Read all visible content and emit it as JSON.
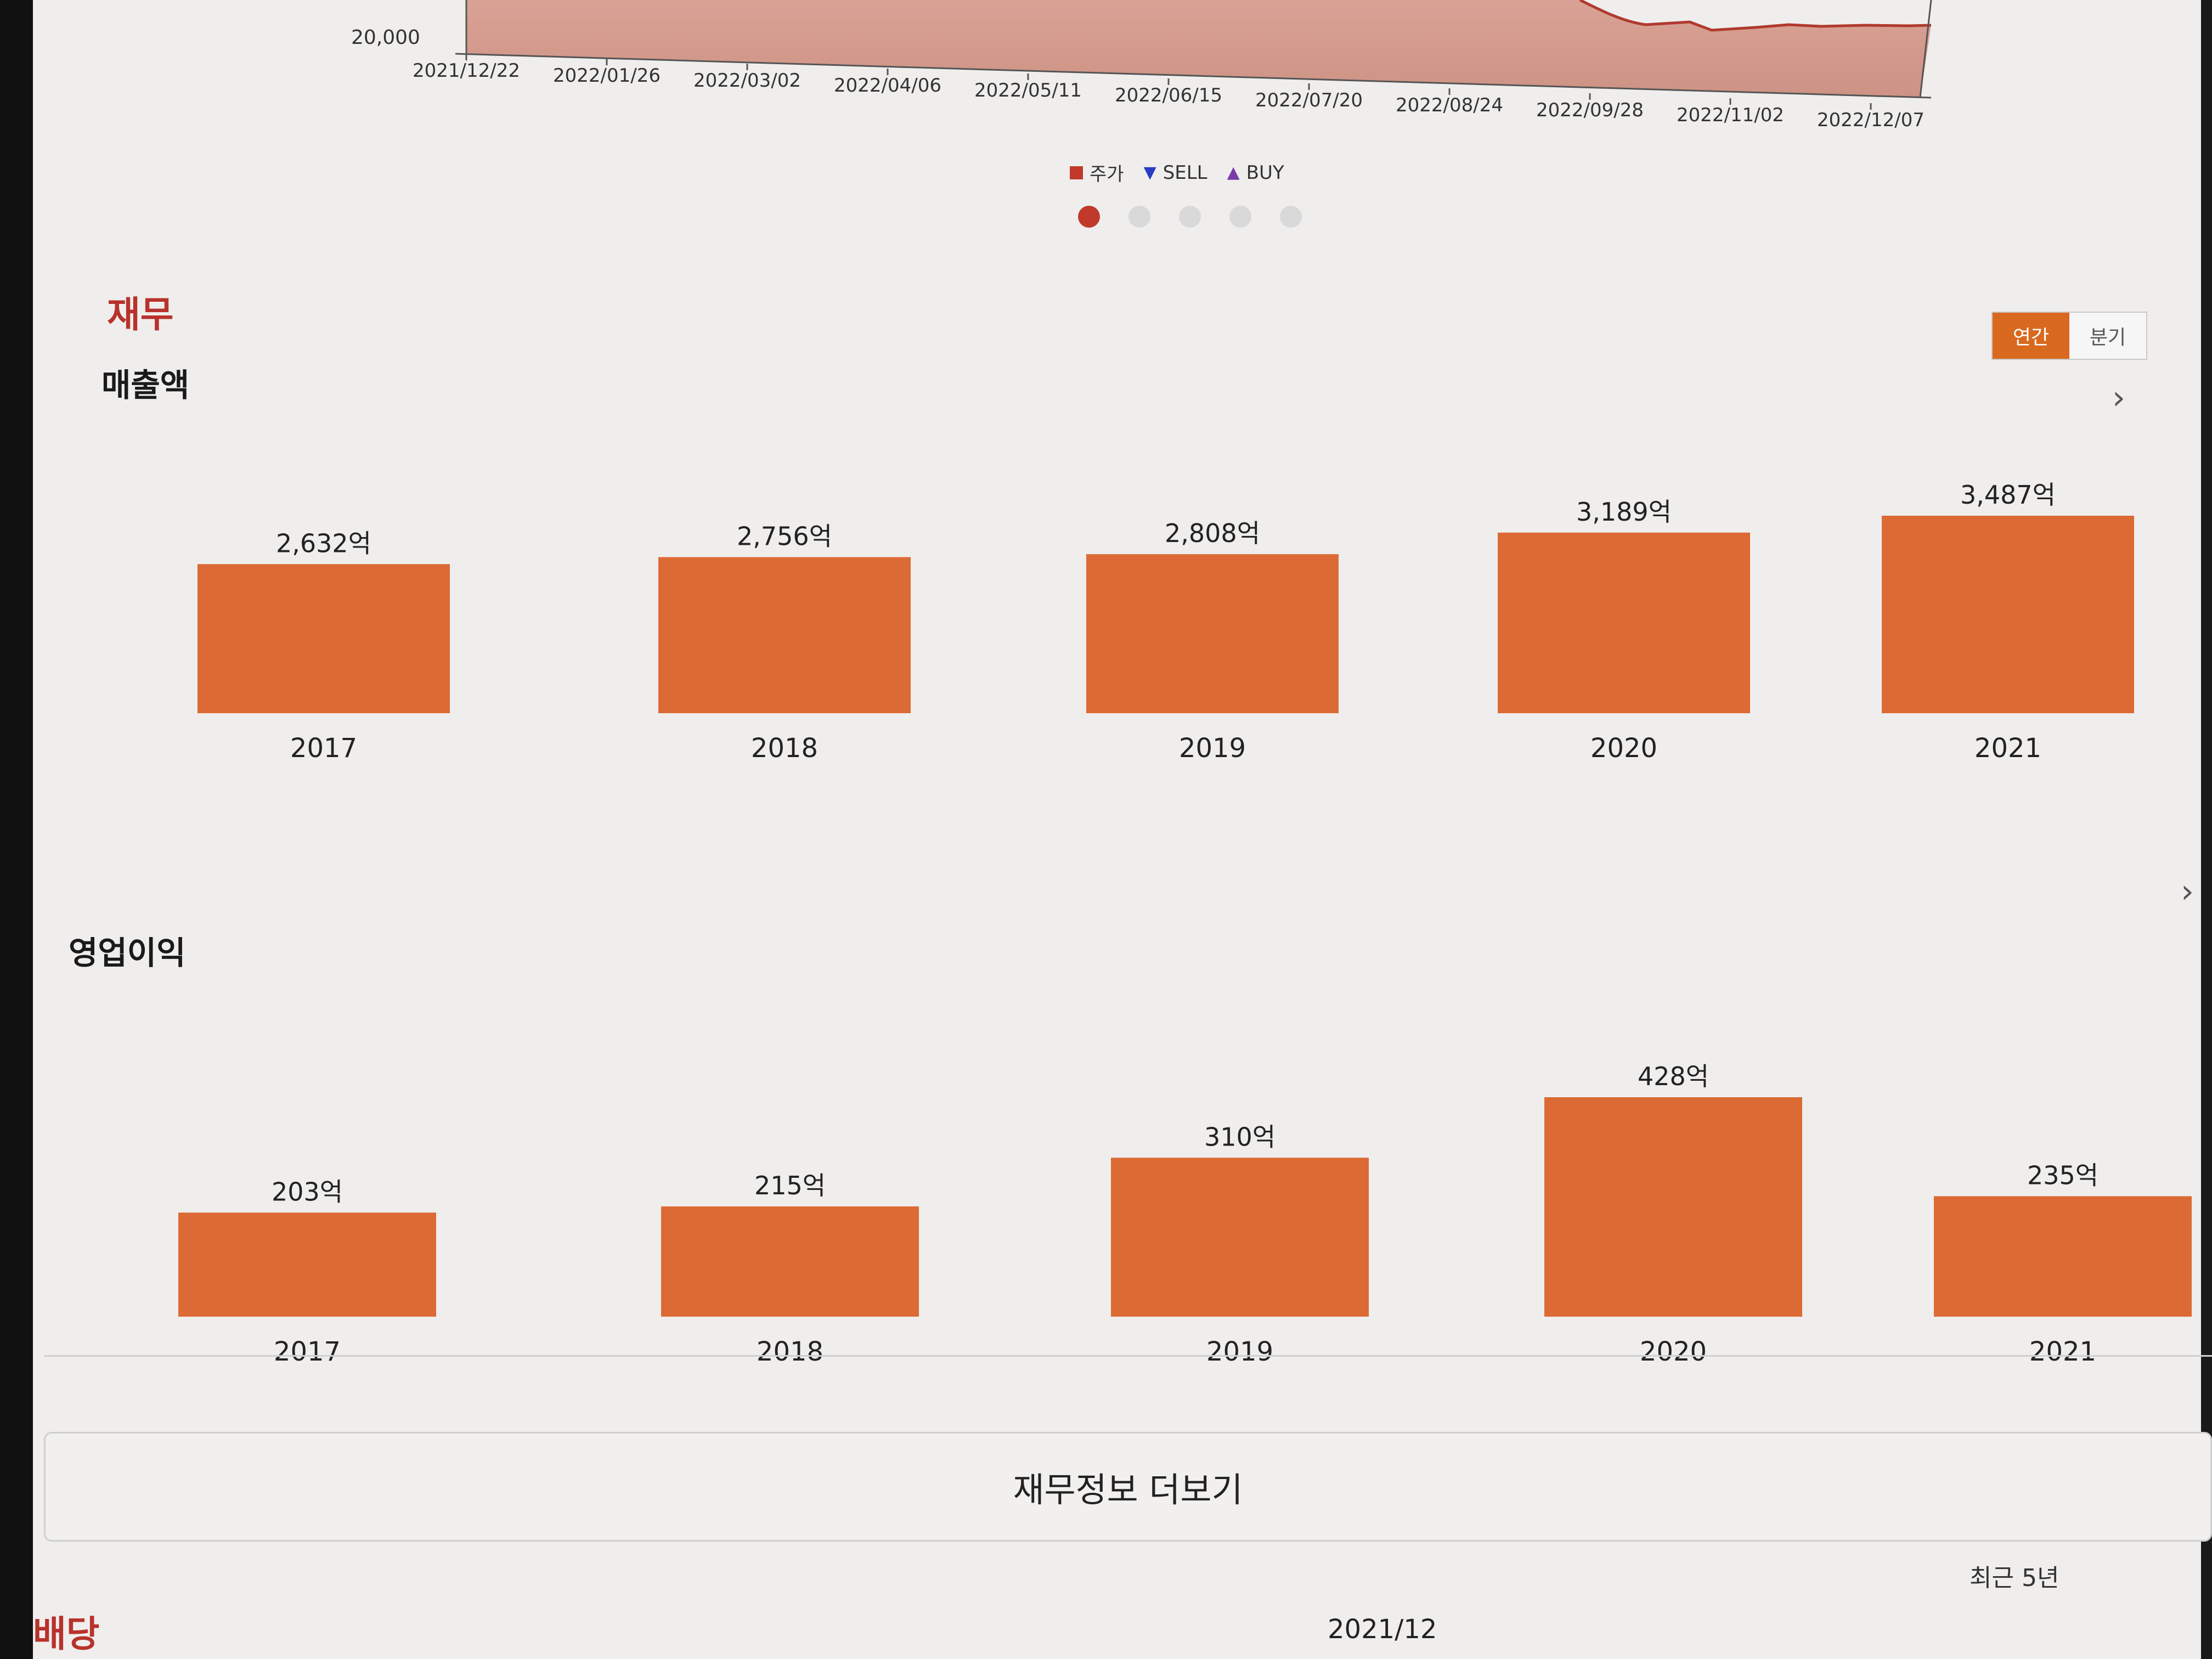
{
  "stock": {
    "y_tick": "20,000",
    "dates": [
      "2021/12/22",
      "2022/01/26",
      "2022/03/02",
      "2022/04/06",
      "2022/05/11",
      "2022/06/15",
      "2022/07/20",
      "2022/08/24",
      "2022/09/28",
      "2022/11/02",
      "2022/12/07"
    ],
    "legend": {
      "price": "주가",
      "sell": "SELL",
      "buy": "BUY"
    },
    "colors": {
      "price": "#c0392b",
      "sell": "#2a3bc4",
      "buy": "#7a3ca8"
    }
  },
  "finance": {
    "title": "재무",
    "toggle": {
      "annual": "연간",
      "quarter": "분기"
    },
    "more_label": "재무정보 더보기"
  },
  "chart_data": [
    {
      "type": "bar",
      "title": "매출액",
      "categories": [
        "2017",
        "2018",
        "2019",
        "2020",
        "2021"
      ],
      "values": [
        2632,
        2756,
        2808,
        3189,
        3487
      ],
      "value_labels": [
        "2,632억",
        "2,756억",
        "2,808억",
        "3,189억",
        "3,487억"
      ],
      "color": "#dc6a34"
    },
    {
      "type": "bar",
      "title": "영업이익",
      "categories": [
        "2017",
        "2018",
        "2019",
        "2020",
        "2021"
      ],
      "values": [
        203,
        215,
        310,
        428,
        235
      ],
      "value_labels": [
        "203억",
        "215억",
        "310억",
        "428억",
        "235억"
      ],
      "color": "#dc6a34"
    }
  ],
  "dividend": {
    "title": "배당",
    "recent_label": "최근 5년",
    "date": "2021/12"
  }
}
